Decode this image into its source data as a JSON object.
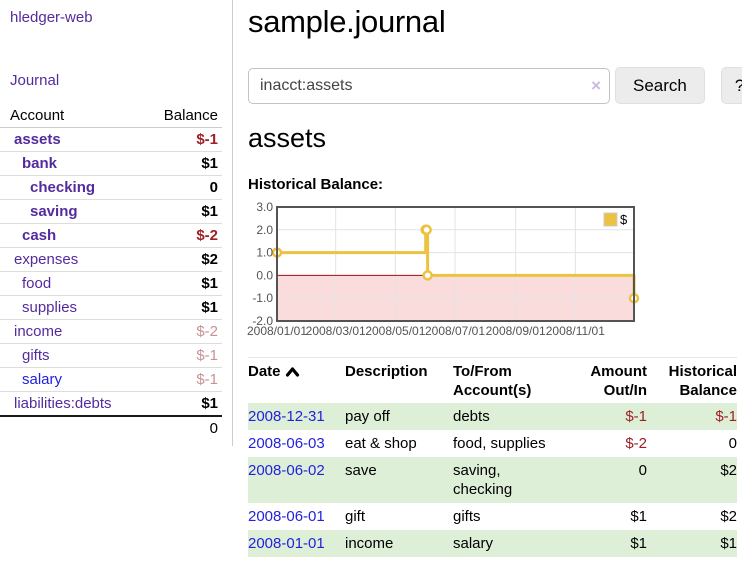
{
  "app": {
    "title": "hledger-web"
  },
  "colors": {
    "link_purple": "#542b9e",
    "link_blue": "#2222dd",
    "negative_strong": "#9e2026",
    "negative_soft": "#c89296",
    "row_green": "#deefd8",
    "chart_line": "#edc240",
    "chart_negative_fill": "#fbdcdc",
    "chart_zero_line": "#a01010"
  },
  "sidebar": {
    "journal_link": "Journal",
    "accounts_table": {
      "headers": [
        "Account",
        "Balance"
      ],
      "rows": [
        {
          "name": "assets",
          "depth": 0,
          "bold": true,
          "balance": "$-1",
          "balance_class": "neg-strong",
          "link_color": "purple"
        },
        {
          "name": "bank",
          "depth": 1,
          "bold": true,
          "balance": "$1",
          "balance_class": "",
          "link_color": "purple"
        },
        {
          "name": "checking",
          "depth": 2,
          "bold": true,
          "balance": "0",
          "balance_class": "",
          "link_color": "purple"
        },
        {
          "name": "saving",
          "depth": 2,
          "bold": true,
          "balance": "$1",
          "balance_class": "",
          "link_color": "purple"
        },
        {
          "name": "cash",
          "depth": 1,
          "bold": true,
          "balance": "$-2",
          "balance_class": "neg-strong",
          "link_color": "purple"
        },
        {
          "name": "expenses",
          "depth": 0,
          "bold": false,
          "balance": "$2",
          "balance_class": "",
          "link_color": "purple"
        },
        {
          "name": "food",
          "depth": 1,
          "bold": false,
          "balance": "$1",
          "balance_class": "",
          "link_color": "purple"
        },
        {
          "name": "supplies",
          "depth": 1,
          "bold": false,
          "balance": "$1",
          "balance_class": "",
          "link_color": "purple"
        },
        {
          "name": "income",
          "depth": 0,
          "bold": false,
          "balance": "$-2",
          "balance_class": "neg-soft",
          "link_color": "purple"
        },
        {
          "name": "gifts",
          "depth": 1,
          "bold": false,
          "balance": "$-1",
          "balance_class": "neg-soft",
          "link_color": "purple"
        },
        {
          "name": "salary",
          "depth": 1,
          "bold": false,
          "balance": "$-1",
          "balance_class": "neg-soft",
          "link_color": "blue"
        },
        {
          "name": "liabilities:debts",
          "depth": 0,
          "bold": false,
          "balance": "$1",
          "balance_class": "",
          "link_color": "purple"
        }
      ],
      "total": "0"
    }
  },
  "main": {
    "title": "sample.journal",
    "search": {
      "value": "inacct:assets",
      "clear_icon": "×",
      "button": "Search",
      "help_button": "?"
    },
    "section_title": "assets",
    "chart_label": "Historical Balance:"
  },
  "chart_data": {
    "type": "line",
    "title": "Historical Balance:",
    "step": true,
    "x_min": "2008-01-01",
    "x_max": "2008-12-31",
    "ylim": [
      -2,
      3
    ],
    "y_ticks": [
      "3.0",
      "2.0",
      "1.0",
      "0.0",
      "-1.0",
      "-2.0"
    ],
    "x_ticks": [
      "2008/01/01",
      "2008/03/01",
      "2008/05/01",
      "2008/07/01",
      "2008/09/01",
      "2008/11/01"
    ],
    "grid": true,
    "legend_position": "top-right",
    "series": [
      {
        "name": "$",
        "points": [
          [
            "2008-01-01",
            1
          ],
          [
            "2008-06-01",
            2
          ],
          [
            "2008-06-02",
            2
          ],
          [
            "2008-06-03",
            0
          ],
          [
            "2008-12-31",
            -1
          ]
        ]
      }
    ]
  },
  "register_table": {
    "headers": [
      {
        "line1": "Date",
        "sorted": true,
        "align": "left"
      },
      {
        "line1": "Description",
        "align": "left"
      },
      {
        "line1": "To/From",
        "line2": "Account(s)",
        "align": "left"
      },
      {
        "line1": "Amount",
        "line2": "Out/In",
        "align": "right"
      },
      {
        "line1": "Historical",
        "line2": "Balance",
        "align": "right"
      }
    ],
    "rows": [
      {
        "date": "2008-12-31",
        "description": "pay off",
        "accounts": "debts",
        "amount": "$-1",
        "amount_negative": true,
        "balance": "$-1",
        "balance_negative": true,
        "highlight": true
      },
      {
        "date": "2008-06-03",
        "description": "eat & shop",
        "accounts": "food, supplies",
        "amount": "$-2",
        "amount_negative": true,
        "balance": "0",
        "balance_negative": false,
        "highlight": false
      },
      {
        "date": "2008-06-02",
        "description": "save",
        "accounts": "saving, checking",
        "amount": "0",
        "amount_negative": false,
        "balance": "$2",
        "balance_negative": false,
        "highlight": true
      },
      {
        "date": "2008-06-01",
        "description": "gift",
        "accounts": "gifts",
        "amount": "$1",
        "amount_negative": false,
        "balance": "$2",
        "balance_negative": false,
        "highlight": false
      },
      {
        "date": "2008-01-01",
        "description": "income",
        "accounts": "salary",
        "amount": "$1",
        "amount_negative": false,
        "balance": "$1",
        "balance_negative": false,
        "highlight": true
      }
    ]
  }
}
